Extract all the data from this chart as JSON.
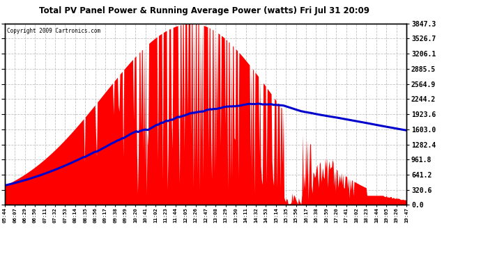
{
  "title": "Total PV Panel Power & Running Average Power (watts) Fri Jul 31 20:09",
  "copyright": "Copyright 2009 Cartronics.com",
  "background_color": "#ffffff",
  "plot_bg_color": "#ffffff",
  "bar_color": "#ff0000",
  "line_color": "#0000cd",
  "grid_color": "#bbbbbb",
  "ymax": 3847.3,
  "ymin": 0.0,
  "yticks": [
    0.0,
    320.6,
    641.2,
    961.8,
    1282.4,
    1603.0,
    1923.6,
    2244.2,
    2564.9,
    2885.5,
    3206.1,
    3526.7,
    3847.3
  ],
  "x_labels": [
    "05:44",
    "06:07",
    "06:29",
    "06:50",
    "07:11",
    "07:32",
    "07:53",
    "08:14",
    "08:35",
    "08:56",
    "09:17",
    "09:38",
    "09:59",
    "10:20",
    "10:41",
    "11:02",
    "11:23",
    "11:44",
    "12:05",
    "12:26",
    "12:47",
    "13:08",
    "13:29",
    "13:50",
    "14:11",
    "14:32",
    "14:53",
    "15:14",
    "15:35",
    "15:56",
    "16:17",
    "16:38",
    "16:59",
    "17:20",
    "17:41",
    "18:02",
    "18:23",
    "18:44",
    "19:05",
    "19:26",
    "19:47"
  ]
}
